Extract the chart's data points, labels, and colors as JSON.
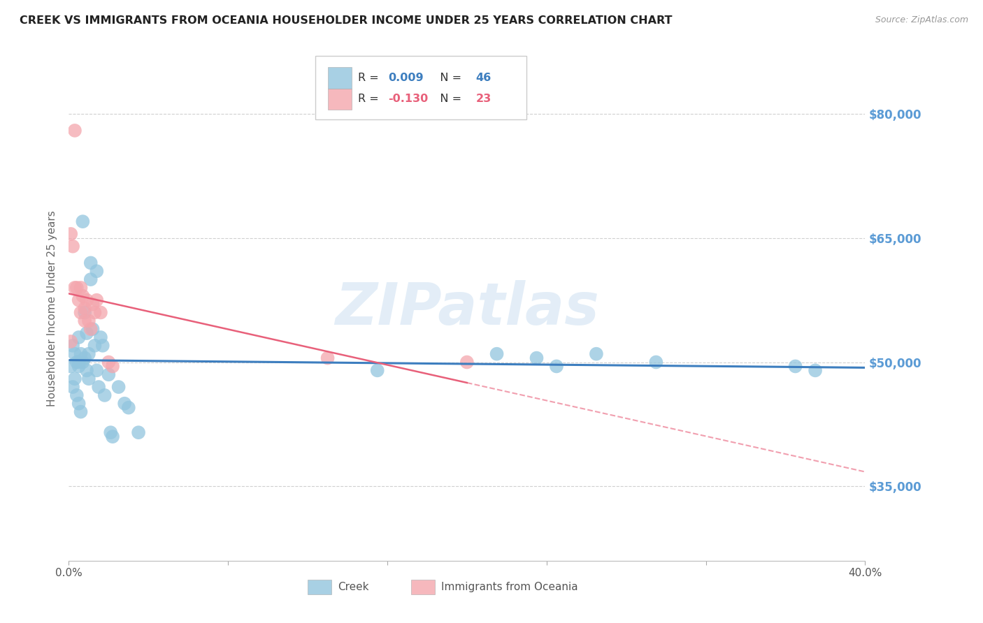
{
  "title": "CREEK VS IMMIGRANTS FROM OCEANIA HOUSEHOLDER INCOME UNDER 25 YEARS CORRELATION CHART",
  "source": "Source: ZipAtlas.com",
  "ylabel": "Householder Income Under 25 years",
  "yticks": [
    35000,
    50000,
    65000,
    80000
  ],
  "ytick_labels": [
    "$35,000",
    "$50,000",
    "$65,000",
    "$80,000"
  ],
  "xlim": [
    0.0,
    0.4
  ],
  "ylim": [
    26000,
    87000
  ],
  "watermark": "ZIPatlas",
  "creek_R": 0.009,
  "creek_N": 46,
  "oceania_R": -0.13,
  "oceania_N": 23,
  "creek_color": "#92c5de",
  "oceania_color": "#f4a6ad",
  "creek_line_color": "#3d7ebf",
  "oceania_line_color": "#e8607a",
  "creek_x": [
    0.001,
    0.002,
    0.002,
    0.003,
    0.003,
    0.004,
    0.004,
    0.005,
    0.005,
    0.005,
    0.006,
    0.006,
    0.007,
    0.007,
    0.008,
    0.008,
    0.009,
    0.009,
    0.01,
    0.01,
    0.011,
    0.011,
    0.012,
    0.013,
    0.014,
    0.014,
    0.015,
    0.016,
    0.017,
    0.018,
    0.02,
    0.021,
    0.022,
    0.025,
    0.028,
    0.03,
    0.035,
    0.155,
    0.215,
    0.235,
    0.245,
    0.265,
    0.295,
    0.365,
    0.375,
    0.005
  ],
  "creek_y": [
    49500,
    52000,
    47000,
    51000,
    48000,
    50000,
    46000,
    49500,
    53000,
    45000,
    51000,
    44000,
    67000,
    50000,
    56000,
    50500,
    49000,
    53500,
    48000,
    51000,
    62000,
    60000,
    54000,
    52000,
    61000,
    49000,
    47000,
    53000,
    52000,
    46000,
    48500,
    41500,
    41000,
    47000,
    45000,
    44500,
    41500,
    49000,
    51000,
    50500,
    49500,
    51000,
    50000,
    49500,
    49000,
    50000
  ],
  "oceania_x": [
    0.001,
    0.002,
    0.003,
    0.003,
    0.004,
    0.005,
    0.006,
    0.006,
    0.007,
    0.008,
    0.008,
    0.009,
    0.01,
    0.011,
    0.012,
    0.013,
    0.014,
    0.016,
    0.02,
    0.13,
    0.2,
    0.001,
    0.022
  ],
  "oceania_y": [
    65500,
    64000,
    59000,
    78000,
    59000,
    57500,
    59000,
    56000,
    58000,
    56500,
    55000,
    57500,
    55000,
    54000,
    57000,
    56000,
    57500,
    56000,
    50000,
    50500,
    50000,
    52500,
    49500
  ],
  "background_color": "#ffffff",
  "grid_color": "#d0d0d0",
  "title_color": "#222222",
  "axis_label_color": "#666666",
  "right_tick_color": "#5b9bd5"
}
